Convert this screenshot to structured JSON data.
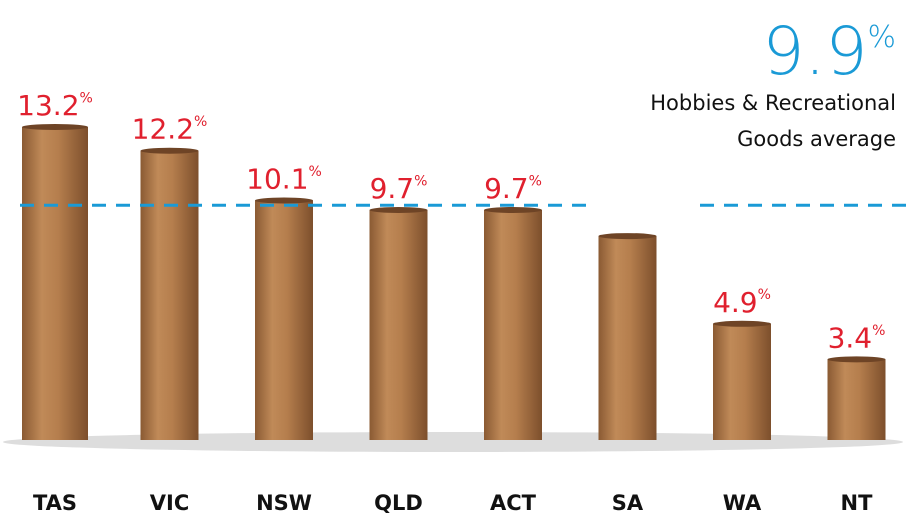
{
  "chart_data": {
    "type": "bar",
    "categories": [
      "TAS",
      "VIC",
      "NSW",
      "QLD",
      "ACT",
      "SA",
      "WA",
      "NT"
    ],
    "values": [
      13.2,
      12.2,
      10.1,
      9.7,
      9.7,
      8.6,
      4.9,
      3.4
    ],
    "value_labels": [
      "13.2%",
      "12.2%",
      "10.1%",
      "9.7%",
      "9.7%",
      null,
      "4.9%",
      "3.4%"
    ],
    "color": "#b07a4a",
    "label_color": "#e0202e",
    "average": {
      "value": 9.9,
      "label": "9.9%",
      "text": [
        "Hobbies & Recreational",
        "Goods average"
      ],
      "color": "#1a9ad6"
    }
  }
}
